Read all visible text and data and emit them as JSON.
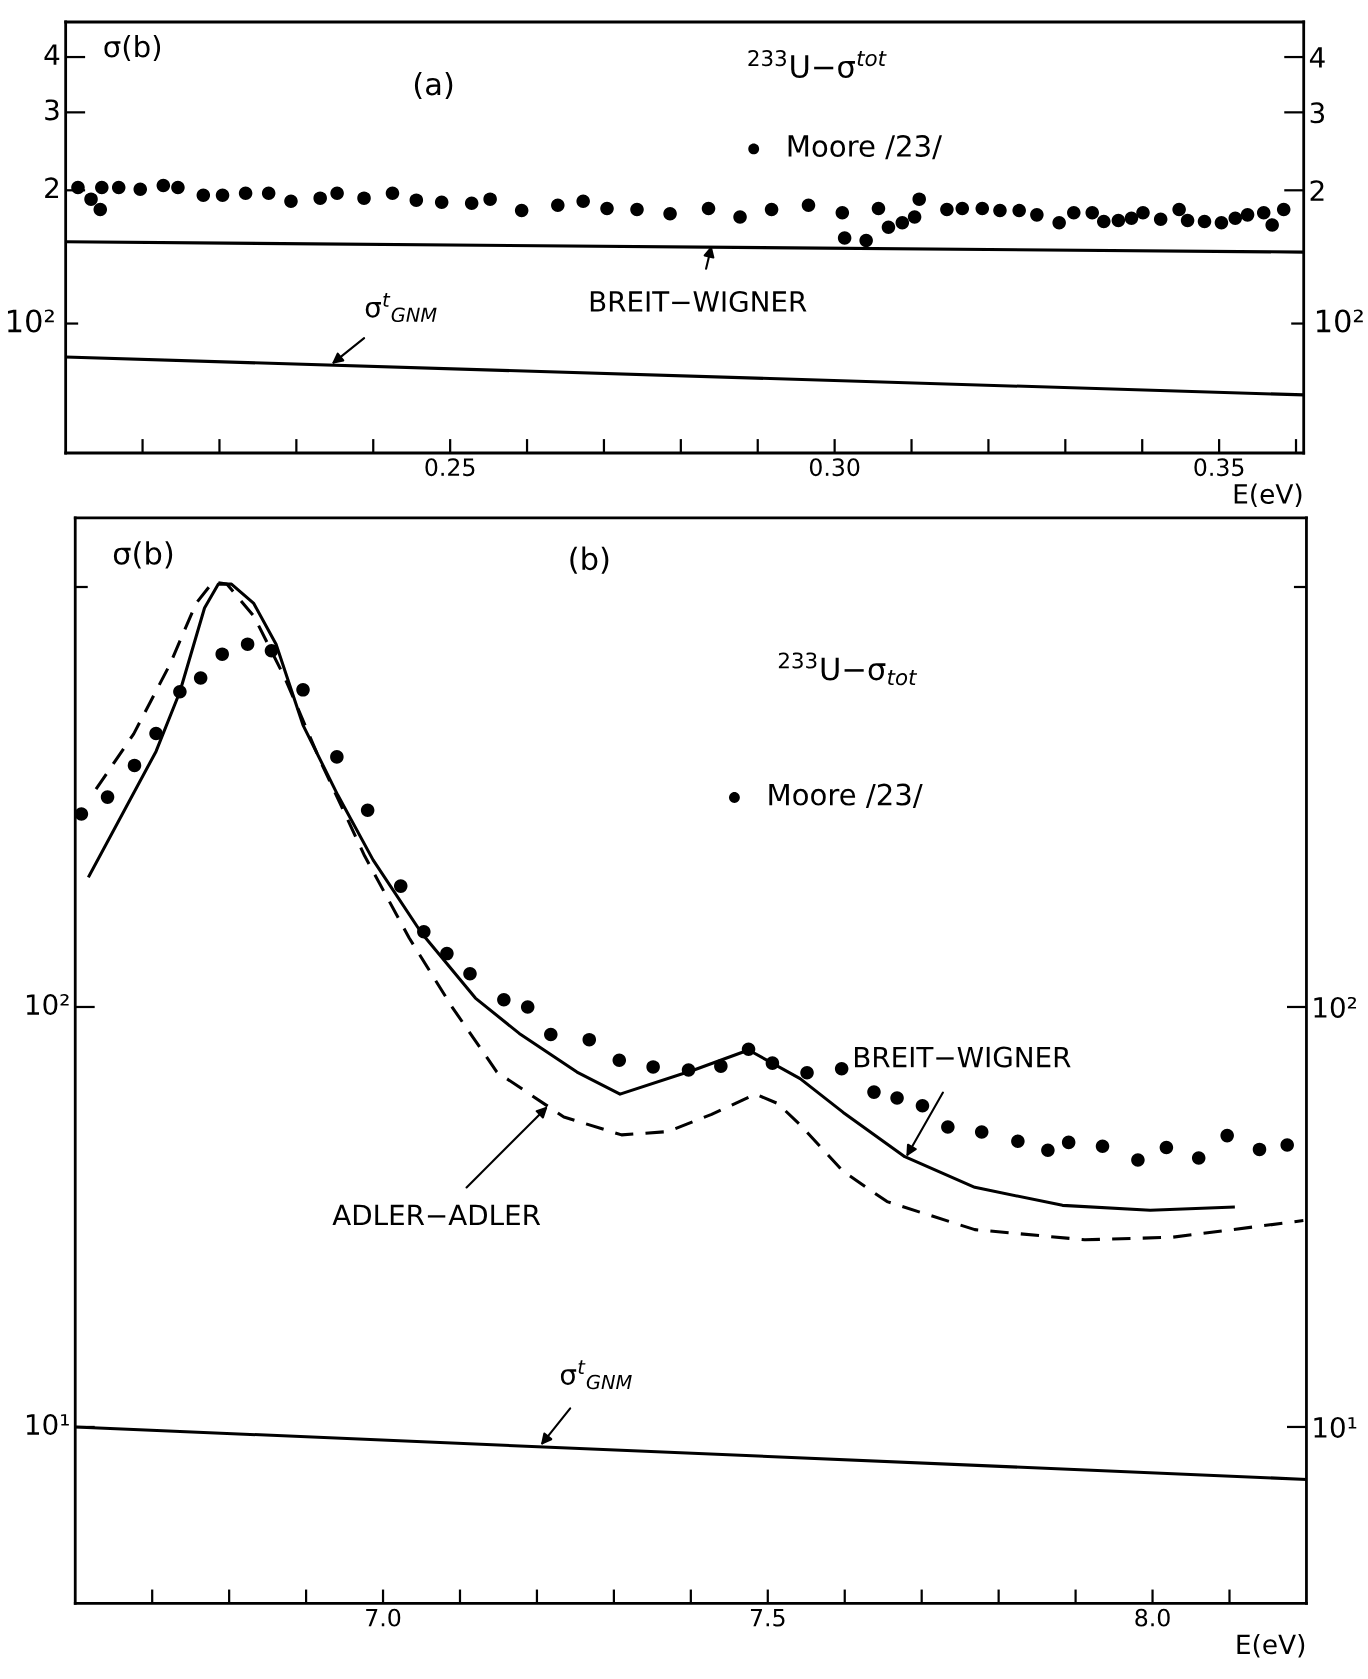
{
  "chart_data": [
    {
      "type": "scatter",
      "ylabel": "σ(b)",
      "xlabel": "E(eV)",
      "xlim": [
        0.2,
        0.361
      ],
      "log": "y",
      "ylim": [
        0.51,
        4.8
      ],
      "yticks": [
        {
          "value": 1,
          "label": null
        },
        {
          "value": 2,
          "label": "2"
        },
        {
          "value": 3,
          "label": "3"
        },
        {
          "value": 4,
          "label": "4"
        }
      ],
      "xticks": [
        {
          "value": 0.21,
          "label": null
        },
        {
          "value": 0.22,
          "label": null
        },
        {
          "value": 0.23,
          "label": null
        },
        {
          "value": 0.24,
          "label": null
        },
        {
          "value": 0.25,
          "label": "0.25"
        },
        {
          "value": 0.26,
          "label": null
        },
        {
          "value": 0.27,
          "label": null
        },
        {
          "value": 0.28,
          "label": null
        },
        {
          "value": 0.29,
          "label": null
        },
        {
          "value": 0.3,
          "label": "0.30"
        },
        {
          "value": 0.31,
          "label": null
        },
        {
          "value": 0.32,
          "label": null
        },
        {
          "value": 0.33,
          "label": null
        },
        {
          "value": 0.34,
          "label": null
        },
        {
          "value": 0.35,
          "label": "0.35"
        },
        {
          "value": 0.36,
          "label": null
        }
      ],
      "legend": "top",
      "grid": false,
      "annotations": [
        "(a)",
        "$^{233}$U−σ$^{tot}$",
        "10²",
        "10²",
        {
          "text": "BREIT−WIGNER",
          "x": 0.284,
          "y": 1.5
        },
        {
          "text": "σ$^{t}$$_{GNM}$",
          "x": 0.2346,
          "y": 0.81
        }
      ],
      "series": [
        {
          "name": "Moore /23/",
          "marker": "circle",
          "color": "#000000",
          "x": [
            0.2016,
            0.2033,
            0.2045,
            0.2047,
            0.2069,
            0.2097,
            0.2127,
            0.2146,
            0.2179,
            0.2204,
            0.2234,
            0.2264,
            0.2293,
            0.2331,
            0.2353,
            0.2388,
            0.2425,
            0.2456,
            0.2489,
            0.2528,
            0.2552,
            0.2593,
            0.264,
            0.2673,
            0.2704,
            0.2743,
            0.2786,
            0.2836,
            0.2877,
            0.2918,
            0.2966,
            0.301,
            0.3013,
            0.3041,
            0.3057,
            0.307,
            0.3088,
            0.3104,
            0.311,
            0.3146,
            0.3166,
            0.3192,
            0.3215,
            0.324,
            0.3263,
            0.3292,
            0.3311,
            0.3335,
            0.335,
            0.3369,
            0.3386,
            0.3401,
            0.3424,
            0.3448,
            0.3459,
            0.3481,
            0.3503,
            0.3521,
            0.3537,
            0.3558,
            0.3569,
            0.3584
          ],
          "values": [
            2.03,
            1.91,
            1.81,
            2.03,
            2.03,
            2.01,
            2.05,
            2.03,
            1.95,
            1.95,
            1.97,
            1.97,
            1.89,
            1.92,
            1.97,
            1.92,
            1.97,
            1.9,
            1.88,
            1.87,
            1.91,
            1.8,
            1.85,
            1.89,
            1.82,
            1.81,
            1.77,
            1.82,
            1.74,
            1.81,
            1.85,
            1.78,
            1.56,
            1.54,
            1.82,
            1.65,
            1.69,
            1.74,
            1.91,
            1.81,
            1.82,
            1.82,
            1.8,
            1.8,
            1.76,
            1.69,
            1.78,
            1.78,
            1.7,
            1.71,
            1.73,
            1.78,
            1.72,
            1.81,
            1.71,
            1.7,
            1.69,
            1.73,
            1.76,
            1.78,
            1.67,
            1.81
          ]
        },
        {
          "type": "line",
          "line_style": "solid",
          "color": "#000000",
          "x": [
            0.2,
            0.361
          ],
          "values": [
            1.53,
            1.45
          ]
        },
        {
          "type": "line",
          "line_style": "solid",
          "color": "#000000",
          "x": [
            0.2,
            0.361
          ],
          "values": [
            0.84,
            0.69
          ]
        }
      ]
    },
    {
      "type": "scatter",
      "xlabel": "E(eV)",
      "xlim": [
        6.6,
        8.2
      ],
      "log": "y",
      "ylim": [
        3.8,
        1460
      ],
      "yticks": [
        {
          "value": 10,
          "label": "10¹"
        },
        {
          "value": 100,
          "label": "10²"
        },
        {
          "value": 1000,
          "label": null
        }
      ],
      "xticks": [
        {
          "value": 6.7,
          "label": null
        },
        {
          "value": 6.8,
          "label": null
        },
        {
          "value": 6.9,
          "label": null
        },
        {
          "value": 7.0,
          "label": "7.0"
        },
        {
          "value": 7.1,
          "label": null
        },
        {
          "value": 7.2,
          "label": null
        },
        {
          "value": 7.3,
          "label": null
        },
        {
          "value": 7.4,
          "label": null
        },
        {
          "value": 7.5,
          "label": "7.5"
        },
        {
          "value": 7.6,
          "label": null
        },
        {
          "value": 7.7,
          "label": null
        },
        {
          "value": 7.8,
          "label": null
        },
        {
          "value": 7.9,
          "label": null
        },
        {
          "value": 8.0,
          "label": "8.0"
        },
        {
          "value": 8.1,
          "label": null
        }
      ],
      "legend": "top",
      "grid": false,
      "annotations": [
        "σ(b)",
        "(b)",
        "$^{233}$U−σ$_{tot}$",
        {
          "text": "BREIT−WIGNER",
          "x": 7.68,
          "y": 44
        },
        {
          "text": "ADLER−ADLER",
          "x": 7.214,
          "y": 58
        },
        {
          "text": "σ$^{t}$$_{GNM}$",
          "x": 7.205,
          "y": 9.05
        }
      ],
      "series": [
        {
          "type": "line",
          "line_style": "solid",
          "color": "#000000",
          "x": [
            6.618,
            6.705,
            6.736,
            6.768,
            6.786,
            6.803,
            6.832,
            6.861,
            6.896,
            6.941,
            6.987,
            7.05,
            7.12,
            7.177,
            7.252,
            7.308,
            7.404,
            7.475,
            7.542,
            7.598,
            7.678,
            7.769,
            7.883,
            7.997,
            8.105
          ],
          "values": [
            205,
            406,
            563,
            891,
            1016,
            1016,
            914,
            731,
            469,
            320,
            224,
            150,
            105,
            86.5,
            70,
            62,
            70.8,
            79,
            67.5,
            56.1,
            44,
            37.2,
            33.7,
            32.8,
            33.4
          ]
        },
        {
          "type": "line",
          "line_style": "dashed",
          "color": "#000000",
          "x": [
            6.627,
            6.676,
            6.723,
            6.757,
            6.779,
            6.797,
            6.832,
            6.872,
            6.918,
            6.976,
            7.034,
            7.09,
            7.148,
            7.235,
            7.31,
            7.37,
            7.427,
            7.484,
            7.513,
            7.542,
            7.598,
            7.655,
            7.769,
            7.912,
            8.026,
            8.196
          ],
          "values": [
            330,
            447,
            654,
            914,
            1028,
            1016,
            853,
            610,
            387,
            229,
            146,
            99.8,
            70,
            54.7,
            49.6,
            50.5,
            55.5,
            62,
            58.9,
            52.4,
            40.6,
            34.4,
            29.5,
            27.9,
            28.3,
            31
          ]
        },
        {
          "type": "line",
          "line_style": "solid",
          "color": "#000000",
          "x": [
            6.6,
            8.2
          ],
          "values": [
            10.0,
            7.5
          ]
        },
        {
          "name": "Moore /23/",
          "marker": "circle",
          "color": "#000000",
          "x": [
            6.608,
            6.642,
            6.677,
            6.705,
            6.736,
            6.763,
            6.791,
            6.824,
            6.855,
            6.896,
            6.94,
            6.98,
            7.023,
            7.053,
            7.083,
            7.113,
            7.157,
            7.188,
            7.218,
            7.268,
            7.307,
            7.351,
            7.397,
            7.439,
            7.475,
            7.506,
            7.551,
            7.596,
            7.638,
            7.668,
            7.701,
            7.734,
            7.778,
            7.825,
            7.864,
            7.891,
            7.935,
            7.981,
            8.018,
            8.06,
            8.097,
            8.139,
            8.175
          ],
          "values": [
            288,
            316,
            376,
            448,
            563,
            607,
            692,
            731,
            705,
            569,
            394,
            294,
            194,
            151,
            134,
            120,
            104,
            100,
            86,
            83.6,
            74.7,
            72,
            70.8,
            72.3,
            79.3,
            73.5,
            69.7,
            71.3,
            62.7,
            60.7,
            58.2,
            51.8,
            50.4,
            47.9,
            45.6,
            47.6,
            46.6,
            43.2,
            46.3,
            43.7,
            49.4,
            45.8,
            46.9
          ]
        }
      ]
    }
  ]
}
